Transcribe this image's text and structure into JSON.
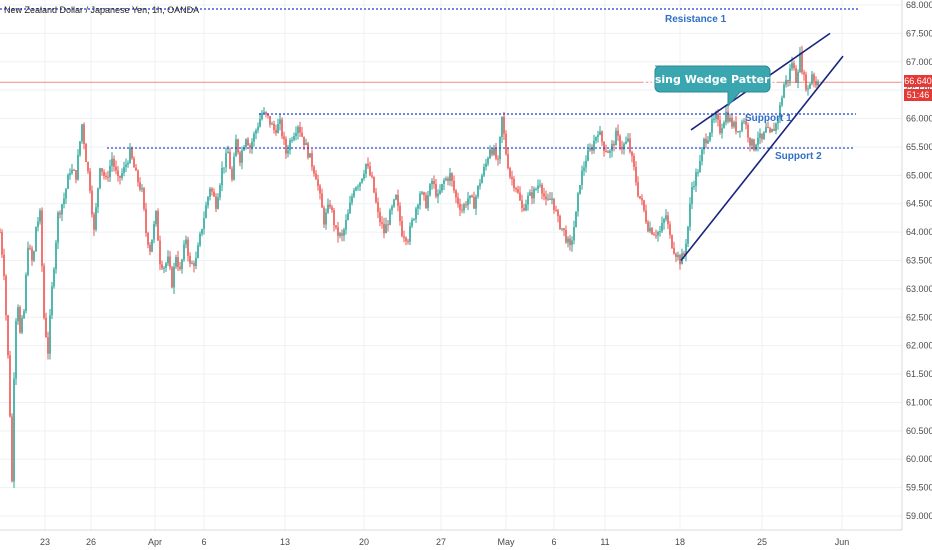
{
  "header": {
    "symbol_title": "New Zealand Dollar / Japanese Yen, 1h, OANDA"
  },
  "price_badge": {
    "price": "66.640",
    "countdown": "51:46",
    "color": "#e53935"
  },
  "annotations": {
    "resistance1": "Resistance 1",
    "support1": "Support 1",
    "support2": "Support 2",
    "wedge_callout": "Rising Wedge Pattern"
  },
  "colors": {
    "up": "#26a69a",
    "down": "#ef5350",
    "levels": "#1a3fd1",
    "wedge": "#1a237e",
    "callout": "#3aa6b0",
    "last_price_line": "#f28b82",
    "grid": "#eef0f3",
    "annotation_text": "#2f6fc6"
  },
  "chart_data": {
    "type": "candlestick",
    "title": "New Zealand Dollar / Japanese Yen, 1h, OANDA",
    "y_axis_side": "right",
    "ylim": [
      58.75,
      68.0
    ],
    "y_ticks": [
      "68.000",
      "67.500",
      "67.000",
      "66.500",
      "66.000",
      "65.500",
      "65.000",
      "64.500",
      "64.000",
      "63.500",
      "63.000",
      "62.500",
      "62.000",
      "61.500",
      "61.000",
      "60.500",
      "60.000",
      "59.500",
      "59.000"
    ],
    "x_ticks": [
      "23",
      "26",
      "Apr",
      "6",
      "13",
      "20",
      "27",
      "May",
      "6",
      "11",
      "18",
      "25",
      "Jun"
    ],
    "last_price": 66.64,
    "levels": [
      {
        "name": "Resistance 1",
        "price": 67.93,
        "style": "dotted"
      },
      {
        "name": "Support 1",
        "price": 66.08,
        "style": "dotted"
      },
      {
        "name": "Support 2",
        "price": 65.48,
        "style": "dotted"
      }
    ],
    "wedge": {
      "upper": [
        {
          "x": "May 18",
          "y": 65.8
        },
        {
          "x": "May 28",
          "y": 67.5
        }
      ],
      "lower": [
        {
          "x": "May 18",
          "y": 63.5
        },
        {
          "x": "May 30",
          "y": 67.1
        }
      ]
    },
    "price_path": [
      [
        0,
        64.0
      ],
      [
        4,
        63.3
      ],
      [
        8,
        61.8
      ],
      [
        11,
        60.3
      ],
      [
        12,
        59.6
      ],
      [
        14,
        61.5
      ],
      [
        17,
        63.0
      ],
      [
        20,
        62.2
      ],
      [
        24,
        62.6
      ],
      [
        28,
        63.8
      ],
      [
        33,
        63.4
      ],
      [
        36,
        64.1
      ],
      [
        40,
        64.3
      ],
      [
        44,
        62.5
      ],
      [
        48,
        61.9
      ],
      [
        52,
        63.0
      ],
      [
        58,
        64.3
      ],
      [
        64,
        64.6
      ],
      [
        70,
        65.1
      ],
      [
        76,
        65.0
      ],
      [
        82,
        65.9
      ],
      [
        86,
        65.3
      ],
      [
        90,
        64.8
      ],
      [
        94,
        64.0
      ],
      [
        100,
        65.2
      ],
      [
        106,
        64.9
      ],
      [
        112,
        65.3
      ],
      [
        118,
        64.9
      ],
      [
        124,
        65.1
      ],
      [
        130,
        65.4
      ],
      [
        136,
        65.0
      ],
      [
        142,
        64.7
      ],
      [
        146,
        64.0
      ],
      [
        150,
        63.7
      ],
      [
        156,
        64.3
      ],
      [
        160,
        63.5
      ],
      [
        164,
        63.4
      ],
      [
        168,
        63.5
      ],
      [
        172,
        63.1
      ],
      [
        176,
        63.6
      ],
      [
        180,
        63.3
      ],
      [
        186,
        63.9
      ],
      [
        190,
        63.4
      ],
      [
        196,
        63.5
      ],
      [
        202,
        64.1
      ],
      [
        210,
        64.8
      ],
      [
        216,
        64.5
      ],
      [
        222,
        65.1
      ],
      [
        228,
        65.4
      ],
      [
        232,
        64.9
      ],
      [
        236,
        65.6
      ],
      [
        240,
        65.3
      ],
      [
        246,
        65.7
      ],
      [
        250,
        65.5
      ],
      [
        256,
        65.8
      ],
      [
        262,
        66.1
      ],
      [
        268,
        66.0
      ],
      [
        274,
        65.8
      ],
      [
        280,
        65.9
      ],
      [
        286,
        65.4
      ],
      [
        292,
        65.7
      ],
      [
        298,
        65.9
      ],
      [
        304,
        65.6
      ],
      [
        310,
        65.3
      ],
      [
        316,
        65.0
      ],
      [
        320,
        64.6
      ],
      [
        324,
        64.2
      ],
      [
        330,
        64.5
      ],
      [
        336,
        64.0
      ],
      [
        342,
        63.9
      ],
      [
        348,
        64.3
      ],
      [
        354,
        64.8
      ],
      [
        360,
        64.9
      ],
      [
        366,
        65.2
      ],
      [
        372,
        64.9
      ],
      [
        378,
        64.3
      ],
      [
        384,
        64.0
      ],
      [
        390,
        64.3
      ],
      [
        396,
        64.6
      ],
      [
        402,
        64.0
      ],
      [
        408,
        63.9
      ],
      [
        414,
        64.3
      ],
      [
        420,
        64.7
      ],
      [
        426,
        64.5
      ],
      [
        432,
        64.9
      ],
      [
        438,
        64.6
      ],
      [
        444,
        64.9
      ],
      [
        450,
        65.0
      ],
      [
        456,
        64.6
      ],
      [
        462,
        64.4
      ],
      [
        468,
        64.6
      ],
      [
        474,
        64.5
      ],
      [
        480,
        64.9
      ],
      [
        486,
        65.2
      ],
      [
        490,
        65.5
      ],
      [
        494,
        65.4
      ],
      [
        498,
        65.2
      ],
      [
        502,
        66.0
      ],
      [
        506,
        65.4
      ],
      [
        510,
        65.0
      ],
      [
        516,
        64.8
      ],
      [
        522,
        64.4
      ],
      [
        528,
        64.6
      ],
      [
        534,
        64.7
      ],
      [
        540,
        64.9
      ],
      [
        546,
        64.5
      ],
      [
        552,
        64.6
      ],
      [
        558,
        64.2
      ],
      [
        564,
        64.0
      ],
      [
        570,
        63.7
      ],
      [
        576,
        64.3
      ],
      [
        580,
        64.9
      ],
      [
        586,
        65.3
      ],
      [
        592,
        65.5
      ],
      [
        598,
        65.8
      ],
      [
        604,
        65.5
      ],
      [
        610,
        65.4
      ],
      [
        616,
        65.7
      ],
      [
        622,
        65.5
      ],
      [
        628,
        65.6
      ],
      [
        634,
        65.1
      ],
      [
        638,
        64.7
      ],
      [
        642,
        64.5
      ],
      [
        648,
        64.1
      ],
      [
        654,
        64.0
      ],
      [
        660,
        64.0
      ],
      [
        666,
        64.3
      ],
      [
        670,
        63.9
      ],
      [
        674,
        63.7
      ],
      [
        680,
        63.5
      ],
      [
        684,
        63.6
      ],
      [
        688,
        64.1
      ],
      [
        692,
        64.8
      ],
      [
        696,
        65.0
      ],
      [
        700,
        65.2
      ],
      [
        704,
        65.6
      ],
      [
        708,
        65.7
      ],
      [
        712,
        65.9
      ],
      [
        716,
        66.0
      ],
      [
        720,
        65.8
      ],
      [
        726,
        66.1
      ],
      [
        732,
        65.9
      ],
      [
        738,
        65.8
      ],
      [
        744,
        66.0
      ],
      [
        750,
        65.6
      ],
      [
        754,
        65.5
      ],
      [
        758,
        65.7
      ],
      [
        762,
        65.6
      ],
      [
        766,
        65.8
      ],
      [
        770,
        65.7
      ],
      [
        776,
        65.9
      ],
      [
        780,
        66.2
      ],
      [
        784,
        66.6
      ],
      [
        788,
        66.7
      ],
      [
        792,
        67.0
      ],
      [
        796,
        66.7
      ],
      [
        800,
        67.1
      ],
      [
        804,
        66.7
      ],
      [
        808,
        66.5
      ],
      [
        812,
        66.8
      ],
      [
        816,
        66.6
      ],
      [
        818,
        66.7
      ]
    ]
  }
}
